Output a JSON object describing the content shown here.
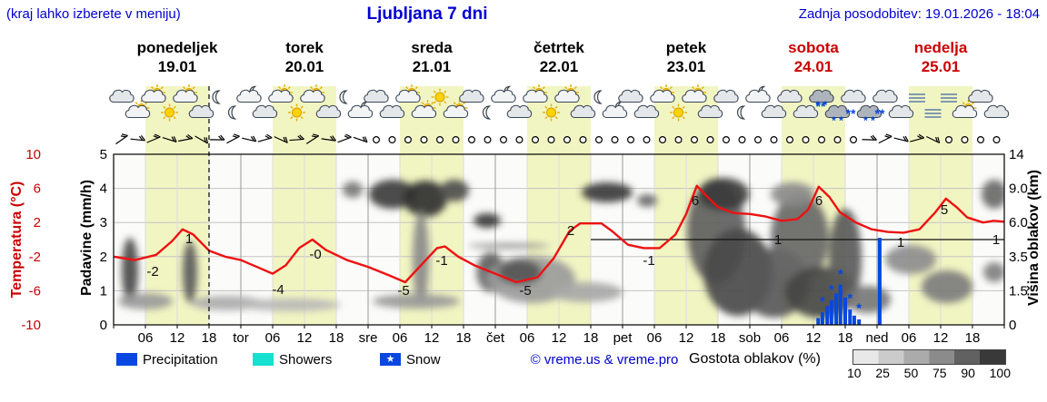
{
  "header": {
    "hint": "(kraj lahko izberete v meniju)",
    "title": "Ljubljana 7 dni",
    "updated": "Zadnja posodobitev: 19.01.2026 - 18:04"
  },
  "days": [
    {
      "name": "ponedeljek",
      "date": "19.01",
      "color": "#000000"
    },
    {
      "name": "torek",
      "date": "20.01",
      "color": "#000000"
    },
    {
      "name": "sreda",
      "date": "21.01",
      "color": "#000000"
    },
    {
      "name": "četrtek",
      "date": "22.01",
      "color": "#000000"
    },
    {
      "name": "petek",
      "date": "23.01",
      "color": "#000000"
    },
    {
      "name": "sobota",
      "date": "24.01",
      "color": "#cc0000"
    },
    {
      "name": "nedelja",
      "date": "25.01",
      "color": "#cc0000"
    }
  ],
  "axes": {
    "temp_label": "Temperatura (°C)",
    "temp_ticks": [
      "10",
      "6",
      "2",
      "-2",
      "-6",
      "-10"
    ],
    "precip_label": "Padavine (mm/h)",
    "precip_ticks": [
      "5",
      "4",
      "3",
      "2",
      "1",
      "0"
    ],
    "cloud_label": "Višina oblakov (km)",
    "cloud_ticks": [
      "14",
      "9.0",
      "6.0",
      "3.5",
      "1.5",
      "0"
    ],
    "x_ticks": [
      "06",
      "12",
      "18"
    ],
    "day_abbrevs": [
      "tor",
      "sre",
      "čet",
      "pet",
      "sob",
      "ned"
    ]
  },
  "legend": {
    "precipitation": "Precipitation",
    "showers": "Showers",
    "snow": "Snow",
    "snow_star": "★",
    "credit": "© vreme.us & vreme.pro",
    "cloud_density": "Gostota oblakov (%)",
    "density_ticks": [
      "10",
      "25",
      "50",
      "75",
      "90",
      "100"
    ]
  },
  "colors": {
    "blue": "#0000d0",
    "red": "#cc0000",
    "temp_line": "#ee1111",
    "band_yellow": "#f1f5c2",
    "precip_blue": "#0847e0",
    "showers_cyan": "#16e0cf"
  },
  "chart_data": {
    "type": "line",
    "title": "Ljubljana 7 dni",
    "x_axis": {
      "unit": "hours from Monday 00:00",
      "range": [
        0,
        168
      ],
      "hour_ticks": [
        6,
        12,
        18
      ]
    },
    "y_temp": {
      "label": "Temperatura (°C)",
      "range": [
        -10,
        10
      ],
      "ticks": [
        10,
        6,
        2,
        -2,
        -6,
        -10
      ]
    },
    "y_precip": {
      "label": "Padavine (mm/h)",
      "range": [
        0,
        5
      ],
      "ticks": [
        5,
        4,
        3,
        2,
        1,
        0
      ]
    },
    "y_cloud_km": {
      "label": "Višina oblakov (km)",
      "ticks": [
        "14",
        "9.0",
        "6.0",
        "3.5",
        "1.5",
        "0"
      ]
    },
    "now_h": 18,
    "zero_line": {
      "t": 0,
      "from_h": 90,
      "to_h": 168
    },
    "temperature": [
      [
        0,
        -2
      ],
      [
        4,
        -2.4
      ],
      [
        8,
        -1.8
      ],
      [
        11,
        -0.2
      ],
      [
        13,
        1.2
      ],
      [
        15,
        0.6
      ],
      [
        18,
        -1.3
      ],
      [
        21,
        -2
      ],
      [
        24,
        -2.4
      ],
      [
        27,
        -3.2
      ],
      [
        30,
        -4
      ],
      [
        32.5,
        -3
      ],
      [
        35,
        -1
      ],
      [
        37.5,
        0
      ],
      [
        40,
        -1.2
      ],
      [
        44,
        -2.4
      ],
      [
        48,
        -3.2
      ],
      [
        52,
        -4.2
      ],
      [
        55,
        -5
      ],
      [
        58,
        -3
      ],
      [
        61,
        -1
      ],
      [
        62.5,
        -0.8
      ],
      [
        65,
        -2
      ],
      [
        68,
        -3
      ],
      [
        72,
        -4
      ],
      [
        76,
        -5
      ],
      [
        80,
        -4.4
      ],
      [
        83,
        -2.2
      ],
      [
        86,
        1
      ],
      [
        88,
        1.9
      ],
      [
        92,
        1.9
      ],
      [
        94,
        1
      ],
      [
        97,
        -0.6
      ],
      [
        100,
        -1
      ],
      [
        103,
        -1
      ],
      [
        106,
        0.6
      ],
      [
        108,
        3
      ],
      [
        110,
        6.3
      ],
      [
        112,
        5
      ],
      [
        114,
        3.8
      ],
      [
        117,
        3.1
      ],
      [
        120,
        3
      ],
      [
        123,
        2.7
      ],
      [
        126,
        2.2
      ],
      [
        129,
        2.4
      ],
      [
        131,
        3.5
      ],
      [
        133,
        6.2
      ],
      [
        135,
        5
      ],
      [
        137,
        3.2
      ],
      [
        140,
        2
      ],
      [
        143,
        1.2
      ],
      [
        146,
        0.9
      ],
      [
        149,
        0.8
      ],
      [
        152,
        1.2
      ],
      [
        155,
        3.2
      ],
      [
        157,
        4.8
      ],
      [
        159,
        3.8
      ],
      [
        161,
        2.6
      ],
      [
        164,
        2
      ],
      [
        166,
        2.2
      ],
      [
        168,
        2.1
      ]
    ],
    "temp_labels": [
      {
        "text": "-2",
        "x": 168,
        "y": 304
      },
      {
        "text": "1",
        "x": 208,
        "y": 268
      },
      {
        "text": "-4",
        "x": 306,
        "y": 324
      },
      {
        "text": "-0",
        "x": 347,
        "y": 285
      },
      {
        "text": "-5",
        "x": 444,
        "y": 325
      },
      {
        "text": "-1",
        "x": 486,
        "y": 292
      },
      {
        "text": "-5",
        "x": 578,
        "y": 325
      },
      {
        "text": "2",
        "x": 628,
        "y": 259
      },
      {
        "text": "-1",
        "x": 714,
        "y": 292
      },
      {
        "text": "6",
        "x": 765,
        "y": 226
      },
      {
        "text": "1",
        "x": 856,
        "y": 269
      },
      {
        "text": "6",
        "x": 901,
        "y": 226
      },
      {
        "text": "1",
        "x": 991,
        "y": 272
      },
      {
        "text": "5",
        "x": 1039,
        "y": 236
      },
      {
        "text": "1",
        "x": 1096,
        "y": 269
      }
    ],
    "precipitation": [
      {
        "h": 132.9,
        "v": 0.2
      },
      {
        "h": 133.7,
        "v": 0.37
      },
      {
        "h": 134.6,
        "v": 0.55
      },
      {
        "h": 135.4,
        "v": 0.72
      },
      {
        "h": 136.3,
        "v": 0.92
      },
      {
        "h": 137.1,
        "v": 1.18
      },
      {
        "h": 138.0,
        "v": 0.8
      },
      {
        "h": 138.9,
        "v": 0.45
      },
      {
        "h": 139.7,
        "v": 0.27
      },
      {
        "h": 140.6,
        "v": 0.16
      },
      {
        "h": 144.5,
        "v": 2.55
      }
    ],
    "snow_marks": [
      {
        "h": 133.7,
        "v": 0.5
      },
      {
        "h": 135.4,
        "v": 0.85
      },
      {
        "h": 137.1,
        "v": 1.3
      },
      {
        "h": 138.9,
        "v": 0.6
      },
      {
        "h": 140.6,
        "v": 0.3
      }
    ],
    "icon_snow_marks": [
      {
        "x": 903,
        "y": 122
      },
      {
        "x": 936,
        "y": 130
      },
      {
        "x": 968,
        "y": 130
      }
    ],
    "icons": [
      "cloud",
      "suncloud",
      "suncloud",
      "sun",
      "suncloud",
      "cloud",
      "moon",
      "moon",
      "mooncloud",
      "cloud",
      "suncloud",
      "sun",
      "suncloud",
      "cloud",
      "moon",
      "mooncloud",
      "cloud",
      "cloud",
      "suncloud",
      "suncloud",
      "sun",
      "suncloud",
      "cloud",
      "moon",
      "mooncloud",
      "cloud",
      "suncloud",
      "sun",
      "suncloud",
      "cloud",
      "moon",
      "mooncloud",
      "cloud",
      "cloud",
      "suncloud",
      "sun",
      "suncloud",
      "cloud",
      "cloud",
      "moon",
      "mooncloud",
      "cloud",
      "cloud",
      "cloud",
      "snowcloud",
      "snowcloud",
      "cloud",
      "snowcloud",
      "cloud",
      "cloud",
      "fog",
      "fog",
      "fog",
      "suncloud",
      "cloud",
      "cloud"
    ],
    "wind": [
      "barb",
      "barb",
      "barb",
      "barb",
      "barb",
      "barb",
      "barb",
      "barb",
      "barb",
      "barb",
      "barb",
      "barb",
      "barb",
      "barb",
      "barb",
      "barb",
      "circle",
      "circle",
      "circle",
      "circle",
      "circle",
      "circle",
      "circle",
      "circle",
      "circle",
      "circle",
      "circle",
      "circle",
      "circle",
      "circle",
      "circle",
      "circle",
      "circle",
      "circle",
      "circle",
      "circle",
      "circle",
      "circle",
      "circle",
      "circle",
      "circle",
      "circle",
      "circle",
      "circle",
      "circle",
      "circle",
      "circle",
      "barb",
      "barb",
      "barb",
      "barb",
      "barb",
      "circle",
      "circle",
      "circle",
      "circle"
    ],
    "cloud_blobs": [
      {
        "x": 143,
        "y": 298,
        "rx": 9,
        "ry": 36,
        "f": "#4a4a4a"
      },
      {
        "x": 160,
        "y": 332,
        "rx": 30,
        "ry": 9,
        "f": "#9a9a9a"
      },
      {
        "x": 209,
        "y": 300,
        "rx": 8,
        "ry": 34,
        "f": "#5a5a5a"
      },
      {
        "x": 250,
        "y": 334,
        "rx": 40,
        "ry": 8,
        "f": "#ababab"
      },
      {
        "x": 320,
        "y": 336,
        "rx": 55,
        "ry": 7,
        "f": "#b8b8b8"
      },
      {
        "x": 388,
        "y": 209,
        "rx": 11,
        "ry": 9,
        "f": "#7a7a7a"
      },
      {
        "x": 432,
        "y": 214,
        "rx": 26,
        "ry": 16,
        "f": "#3d3d3d"
      },
      {
        "x": 468,
        "y": 219,
        "rx": 24,
        "ry": 20,
        "f": "#303030"
      },
      {
        "x": 500,
        "y": 210,
        "rx": 16,
        "ry": 12,
        "f": "#4f4f4f"
      },
      {
        "x": 463,
        "y": 285,
        "rx": 9,
        "ry": 52,
        "f": "#8a8a8a"
      },
      {
        "x": 458,
        "y": 332,
        "rx": 48,
        "ry": 8,
        "f": "#999999"
      },
      {
        "x": 536,
        "y": 243,
        "rx": 15,
        "ry": 8,
        "f": "#3a3a3a"
      },
      {
        "x": 540,
        "y": 290,
        "rx": 12,
        "ry": 10,
        "f": "#404040"
      },
      {
        "x": 540,
        "y": 300,
        "rx": 16,
        "ry": 22,
        "f": "#6f6f6f"
      },
      {
        "x": 585,
        "y": 308,
        "rx": 48,
        "ry": 26,
        "f": "#9b9b9b"
      },
      {
        "x": 572,
        "y": 300,
        "rx": 24,
        "ry": 14,
        "f": "#565656"
      },
      {
        "x": 560,
        "y": 271,
        "rx": 45,
        "ry": 3,
        "f": "#8f8f8f"
      },
      {
        "x": 645,
        "y": 322,
        "rx": 40,
        "ry": 11,
        "f": "#a8a8a8"
      },
      {
        "x": 668,
        "y": 212,
        "rx": 28,
        "ry": 11,
        "f": "#3a3a3a"
      },
      {
        "x": 712,
        "y": 221,
        "rx": 11,
        "ry": 7,
        "f": "#6a6a6a"
      },
      {
        "x": 788,
        "y": 255,
        "rx": 32,
        "ry": 58,
        "f": "#5f5f5f"
      },
      {
        "x": 812,
        "y": 300,
        "rx": 38,
        "ry": 48,
        "f": "#4a4a4a"
      },
      {
        "x": 796,
        "y": 214,
        "rx": 28,
        "ry": 18,
        "f": "#3c3c3c"
      },
      {
        "x": 852,
        "y": 312,
        "rx": 38,
        "ry": 38,
        "f": "#585858"
      },
      {
        "x": 880,
        "y": 262,
        "rx": 32,
        "ry": 48,
        "f": "#686868"
      },
      {
        "x": 902,
        "y": 322,
        "rx": 38,
        "ry": 28,
        "f": "#474747"
      },
      {
        "x": 872,
        "y": 214,
        "rx": 24,
        "ry": 13,
        "f": "#8b8b8b"
      },
      {
        "x": 930,
        "y": 285,
        "rx": 18,
        "ry": 55,
        "f": "#5a5a5a"
      },
      {
        "x": 955,
        "y": 330,
        "rx": 25,
        "ry": 15,
        "f": "#777777"
      },
      {
        "x": 1002,
        "y": 286,
        "rx": 28,
        "ry": 16,
        "f": "#8d8d8d"
      },
      {
        "x": 1042,
        "y": 316,
        "rx": 28,
        "ry": 18,
        "f": "#7d7d7d"
      },
      {
        "x": 1094,
        "y": 214,
        "rx": 14,
        "ry": 16,
        "f": "#6a6a6a"
      },
      {
        "x": 1094,
        "y": 300,
        "rx": 12,
        "ry": 11,
        "f": "#808080"
      }
    ]
  }
}
